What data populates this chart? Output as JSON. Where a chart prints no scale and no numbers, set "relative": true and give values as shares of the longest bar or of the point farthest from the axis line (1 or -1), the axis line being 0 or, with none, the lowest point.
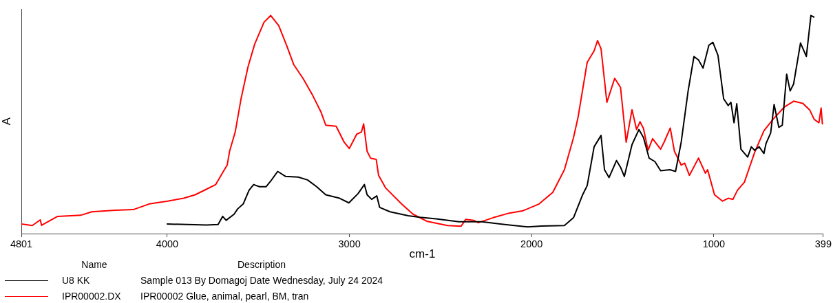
{
  "chart_data": {
    "type": "line",
    "xlabel": "cm-1",
    "ylabel": "A",
    "legend_title": "Name",
    "legend": "bottom left",
    "tick_labels": "x",
    "relative": true,
    "xlim": [
      4801,
      399
    ],
    "xticks": [
      4801,
      4000,
      3000,
      2000,
      1000,
      399
    ],
    "annotations": [
      "Description",
      "Sample 013 By Domagoj Date Wednesday, July 24 2024",
      "IPR00002 Glue, animal, pearl, BM, tran"
    ],
    "series": [
      {
        "name": "U8 KK",
        "color": "#000000",
        "x": [
          4000,
          3784,
          3721,
          3696,
          3677,
          3633,
          3614,
          3583,
          3551,
          3526,
          3494,
          3457,
          3432,
          3394,
          3350,
          3281,
          3230,
          3180,
          3130,
          3054,
          3003,
          2953,
          2918,
          2903,
          2878,
          2850,
          2834,
          2777,
          2677,
          2613,
          2525,
          2399,
          2274,
          2148,
          2022,
          1946,
          1820,
          1770,
          1720,
          1695,
          1657,
          1638,
          1619,
          1600,
          1575,
          1534,
          1512,
          1491,
          1449,
          1411,
          1386,
          1355,
          1323,
          1292,
          1241,
          1210,
          1179,
          1141,
          1109,
          1084,
          1059,
          1027,
          1005,
          977,
          946,
          921,
          906,
          889,
          874,
          851,
          814,
          794,
          776,
          751,
          725,
          713,
          688,
          669,
          643,
          624,
          600,
          581,
          562,
          524,
          492,
          467,
          451
        ],
        "values": [
          0.044,
          0.039,
          0.042,
          0.079,
          0.061,
          0.089,
          0.113,
          0.136,
          0.199,
          0.225,
          0.215,
          0.215,
          0.241,
          0.285,
          0.262,
          0.259,
          0.246,
          0.215,
          0.178,
          0.162,
          0.141,
          0.183,
          0.225,
          0.178,
          0.157,
          0.173,
          0.12,
          0.1,
          0.082,
          0.075,
          0.068,
          0.054,
          0.054,
          0.042,
          0.031,
          0.035,
          0.037,
          0.073,
          0.178,
          0.22,
          0.398,
          0.424,
          0.45,
          0.293,
          0.257,
          0.335,
          0.304,
          0.262,
          0.408,
          0.477,
          0.44,
          0.346,
          0.33,
          0.288,
          0.293,
          0.285,
          0.419,
          0.654,
          0.812,
          0.796,
          0.759,
          0.864,
          0.877,
          0.817,
          0.618,
          0.587,
          0.602,
          0.508,
          0.595,
          0.387,
          0.351,
          0.398,
          0.382,
          0.398,
          0.367,
          0.414,
          0.461,
          0.592,
          0.487,
          0.497,
          0.731,
          0.654,
          0.686,
          0.874,
          0.812,
          1.0,
          0.993
        ]
      },
      {
        "name": "IPR00002.DX",
        "color": "#ff0000",
        "x": [
          4801,
          4741,
          4697,
          4690,
          4602,
          4476,
          4414,
          4287,
          4187,
          4099,
          3998,
          3910,
          3847,
          3784,
          3734,
          3690,
          3671,
          3658,
          3627,
          3595,
          3557,
          3520,
          3469,
          3432,
          3388,
          3343,
          3306,
          3255,
          3205,
          3155,
          3130,
          3073,
          3029,
          3001,
          2960,
          2934,
          2922,
          2903,
          2884,
          2853,
          2840,
          2802,
          2714,
          2651,
          2576,
          2462,
          2387,
          2362,
          2318,
          2293,
          2211,
          2123,
          2047,
          1959,
          1884,
          1820,
          1770,
          1745,
          1695,
          1657,
          1638,
          1619,
          1587,
          1544,
          1512,
          1481,
          1449,
          1424,
          1405,
          1386,
          1361,
          1336,
          1292,
          1273,
          1239,
          1216,
          1179,
          1160,
          1134,
          1084,
          1046,
          1034,
          996,
          952,
          921,
          895,
          870,
          832,
          776,
          725,
          675,
          612,
          562,
          511,
          473,
          449,
          423,
          411,
          404
        ],
        "values": [
          0.044,
          0.037,
          0.063,
          0.038,
          0.079,
          0.084,
          0.1,
          0.107,
          0.11,
          0.136,
          0.149,
          0.162,
          0.178,
          0.204,
          0.225,
          0.288,
          0.314,
          0.377,
          0.466,
          0.618,
          0.764,
          0.869,
          0.969,
          1.0,
          0.953,
          0.859,
          0.775,
          0.712,
          0.639,
          0.555,
          0.497,
          0.492,
          0.419,
          0.39,
          0.456,
          0.466,
          0.503,
          0.377,
          0.346,
          0.34,
          0.267,
          0.21,
          0.136,
          0.089,
          0.057,
          0.037,
          0.034,
          0.065,
          0.061,
          0.05,
          0.073,
          0.094,
          0.105,
          0.136,
          0.189,
          0.293,
          0.44,
          0.534,
          0.785,
          0.838,
          0.885,
          0.848,
          0.602,
          0.712,
          0.67,
          0.419,
          0.568,
          0.477,
          0.513,
          0.482,
          0.382,
          0.435,
          0.387,
          0.419,
          0.484,
          0.377,
          0.314,
          0.323,
          0.267,
          0.346,
          0.277,
          0.293,
          0.178,
          0.149,
          0.162,
          0.157,
          0.199,
          0.236,
          0.372,
          0.471,
          0.524,
          0.581,
          0.607,
          0.597,
          0.566,
          0.524,
          0.508,
          0.576,
          0.503
        ]
      }
    ]
  }
}
